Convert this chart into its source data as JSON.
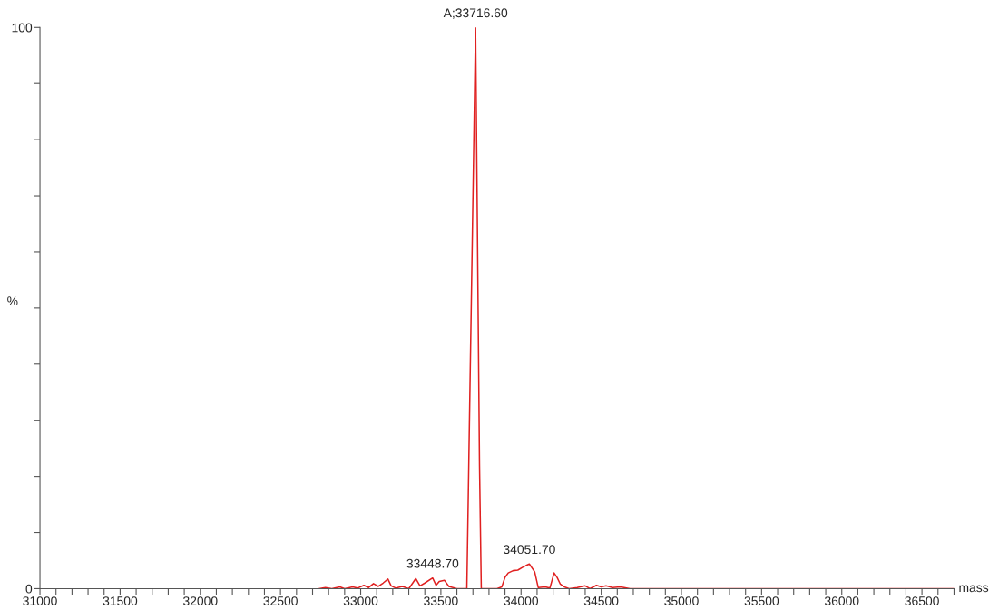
{
  "chart_data": {
    "type": "line",
    "xlabel": "mass",
    "ylabel": "%",
    "series": [
      {
        "color": "#e02020",
        "x": [
          32740,
          32780,
          32820,
          32870,
          32900,
          32950,
          32980,
          33020,
          33050,
          33080,
          33110,
          33140,
          33170,
          33190,
          33220,
          33260,
          33300,
          33344,
          33370,
          33400,
          33448.7,
          33470,
          33490,
          33522,
          33550,
          33600,
          33662,
          33716.6,
          33741,
          33752,
          33800,
          33850,
          33880,
          33900,
          33920,
          33950,
          33980,
          34010,
          34030,
          34051.7,
          34085,
          34107,
          34150,
          34180,
          34206,
          34225,
          34245,
          34270,
          34300,
          34350,
          34400,
          34430,
          34470,
          34500,
          34530,
          34570,
          34620,
          34680,
          36700
        ],
        "values": [
          0,
          0.2,
          0,
          0.3,
          0,
          0.3,
          0.1,
          0.6,
          0.2,
          0.9,
          0.4,
          1.0,
          1.7,
          0.5,
          0.1,
          0.4,
          0,
          1.8,
          0.5,
          1.0,
          1.9,
          0.6,
          1.3,
          1.5,
          0.4,
          0,
          0,
          100,
          22,
          0,
          0,
          0,
          0.3,
          2.0,
          2.8,
          3.2,
          3.3,
          3.8,
          4.1,
          4.4,
          3.0,
          0.2,
          0.3,
          0.1,
          2.8,
          2.0,
          0.8,
          0.3,
          0,
          0.2,
          0.5,
          0,
          0.6,
          0.3,
          0.5,
          0.2,
          0.3,
          0,
          0
        ]
      }
    ],
    "xlim": [
      31000,
      36700
    ],
    "ylim": [
      0,
      100
    ],
    "xticks": [
      31000,
      {
        "value": 31100,
        "label": null
      },
      {
        "value": 31200,
        "label": null
      },
      {
        "value": 31300,
        "label": null
      },
      {
        "value": 31400,
        "label": null
      },
      31500,
      {
        "value": 31600,
        "label": null
      },
      {
        "value": 31700,
        "label": null
      },
      {
        "value": 31800,
        "label": null
      },
      {
        "value": 31900,
        "label": null
      },
      32000,
      {
        "value": 32100,
        "label": null
      },
      {
        "value": 32200,
        "label": null
      },
      {
        "value": 32300,
        "label": null
      },
      {
        "value": 32400,
        "label": null
      },
      32500,
      {
        "value": 32600,
        "label": null
      },
      {
        "value": 32700,
        "label": null
      },
      {
        "value": 32800,
        "label": null
      },
      {
        "value": 32900,
        "label": null
      },
      33000,
      {
        "value": 33100,
        "label": null
      },
      {
        "value": 33200,
        "label": null
      },
      {
        "value": 33300,
        "label": null
      },
      {
        "value": 33400,
        "label": null
      },
      33500,
      {
        "value": 33600,
        "label": null
      },
      {
        "value": 33700,
        "label": null
      },
      {
        "value": 33800,
        "label": null
      },
      {
        "value": 33900,
        "label": null
      },
      34000,
      {
        "value": 34100,
        "label": null
      },
      {
        "value": 34200,
        "label": null
      },
      {
        "value": 34300,
        "label": null
      },
      {
        "value": 34400,
        "label": null
      },
      34500,
      {
        "value": 34600,
        "label": null
      },
      {
        "value": 34700,
        "label": null
      },
      {
        "value": 34800,
        "label": null
      },
      {
        "value": 34900,
        "label": null
      },
      35000,
      {
        "value": 35100,
        "label": null
      },
      {
        "value": 35200,
        "label": null
      },
      {
        "value": 35300,
        "label": null
      },
      {
        "value": 35400,
        "label": null
      },
      35500,
      {
        "value": 35600,
        "label": null
      },
      {
        "value": 35700,
        "label": null
      },
      {
        "value": 35800,
        "label": null
      },
      {
        "value": 35900,
        "label": null
      },
      36000,
      {
        "value": 36100,
        "label": null
      },
      {
        "value": 36200,
        "label": null
      },
      {
        "value": 36300,
        "label": null
      },
      {
        "value": 36400,
        "label": null
      },
      36500,
      {
        "value": 36600,
        "label": null
      },
      {
        "value": 36700,
        "label": null
      }
    ],
    "yticks": [
      0,
      {
        "value": 10,
        "label": null
      },
      {
        "value": 20,
        "label": null
      },
      {
        "value": 30,
        "label": null
      },
      {
        "value": 40,
        "label": null
      },
      {
        "value": 50,
        "label": null
      },
      {
        "value": 60,
        "label": null
      },
      {
        "value": 70,
        "label": null
      },
      {
        "value": 80,
        "label": null
      },
      {
        "value": 90,
        "label": null
      },
      100
    ],
    "grid": false,
    "legend": false,
    "marker": "none",
    "line_style": "solid",
    "annotations": [
      {
        "text": "A;33716.60",
        "x": 33716.6,
        "y": 100
      },
      {
        "text": "33448.70",
        "x": 33448.7,
        "y": 1.9
      },
      {
        "text": "34051.70",
        "x": 34051.7,
        "y": 4.4
      }
    ]
  }
}
